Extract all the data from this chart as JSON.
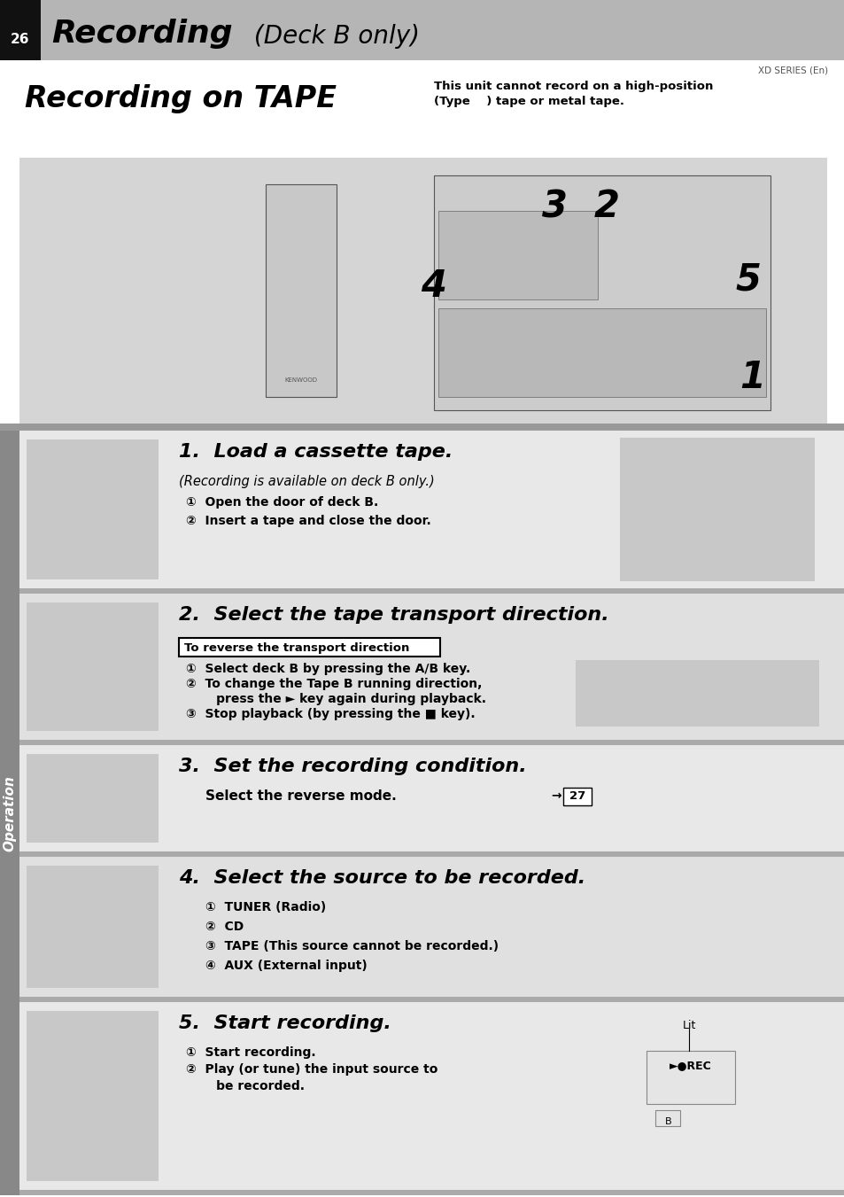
{
  "page_bg": "#ffffff",
  "header_bg": "#b8b8b8",
  "header_black": "#1a1a1a",
  "page_number": "26",
  "title_bold": "Recording",
  "title_italic": " (Deck B only)",
  "subtitle_series": "XD SERIES (En)",
  "section_bg": "#ffffff",
  "section_title": "Recording on TAPE",
  "section_note_line1": "This unit cannot record on a high-position",
  "section_note_line2": "(Type    ) tape or metal tape.",
  "image_area_bg": "#d8d8d8",
  "separator_color": "#aaaaaa",
  "step_bg_odd": "#e8e8e8",
  "step_bg_even": "#f0f0f0",
  "sidebar_bg": "#888888",
  "operation_label": "Operation",
  "steps": [
    {
      "number": "1",
      "title": "Load a cassette tape.",
      "subtitle": "(Recording is available on deck B only.)",
      "bullets": [
        "①  Open the door of deck B.",
        "②  Insert a tape and close the door."
      ]
    },
    {
      "number": "2",
      "title": "Select the tape transport direction.",
      "box_text": "To reverse the transport direction",
      "bullets": [
        "①  Select deck B by pressing the A/B key.",
        "②  To change the Tape B running direction,",
        "       press the ► key again during playback.",
        "③  Stop playback (by pressing the ■ key)."
      ]
    },
    {
      "number": "3",
      "title": "Set the recording condition.",
      "body": "Select the reverse mode.",
      "ref": "→ 27"
    },
    {
      "number": "4",
      "title": "Select the source to be recorded.",
      "list": [
        "①  TUNER (Radio)",
        "②  CD",
        "③  TAPE (This source cannot be recorded.)",
        "④  AUX (External input)"
      ]
    },
    {
      "number": "5",
      "title": "Start recording.",
      "bullets": [
        "①  Start recording.",
        "②  Play (or tune) the input source to",
        "       be recorded."
      ],
      "lit_label": "Lit"
    }
  ]
}
